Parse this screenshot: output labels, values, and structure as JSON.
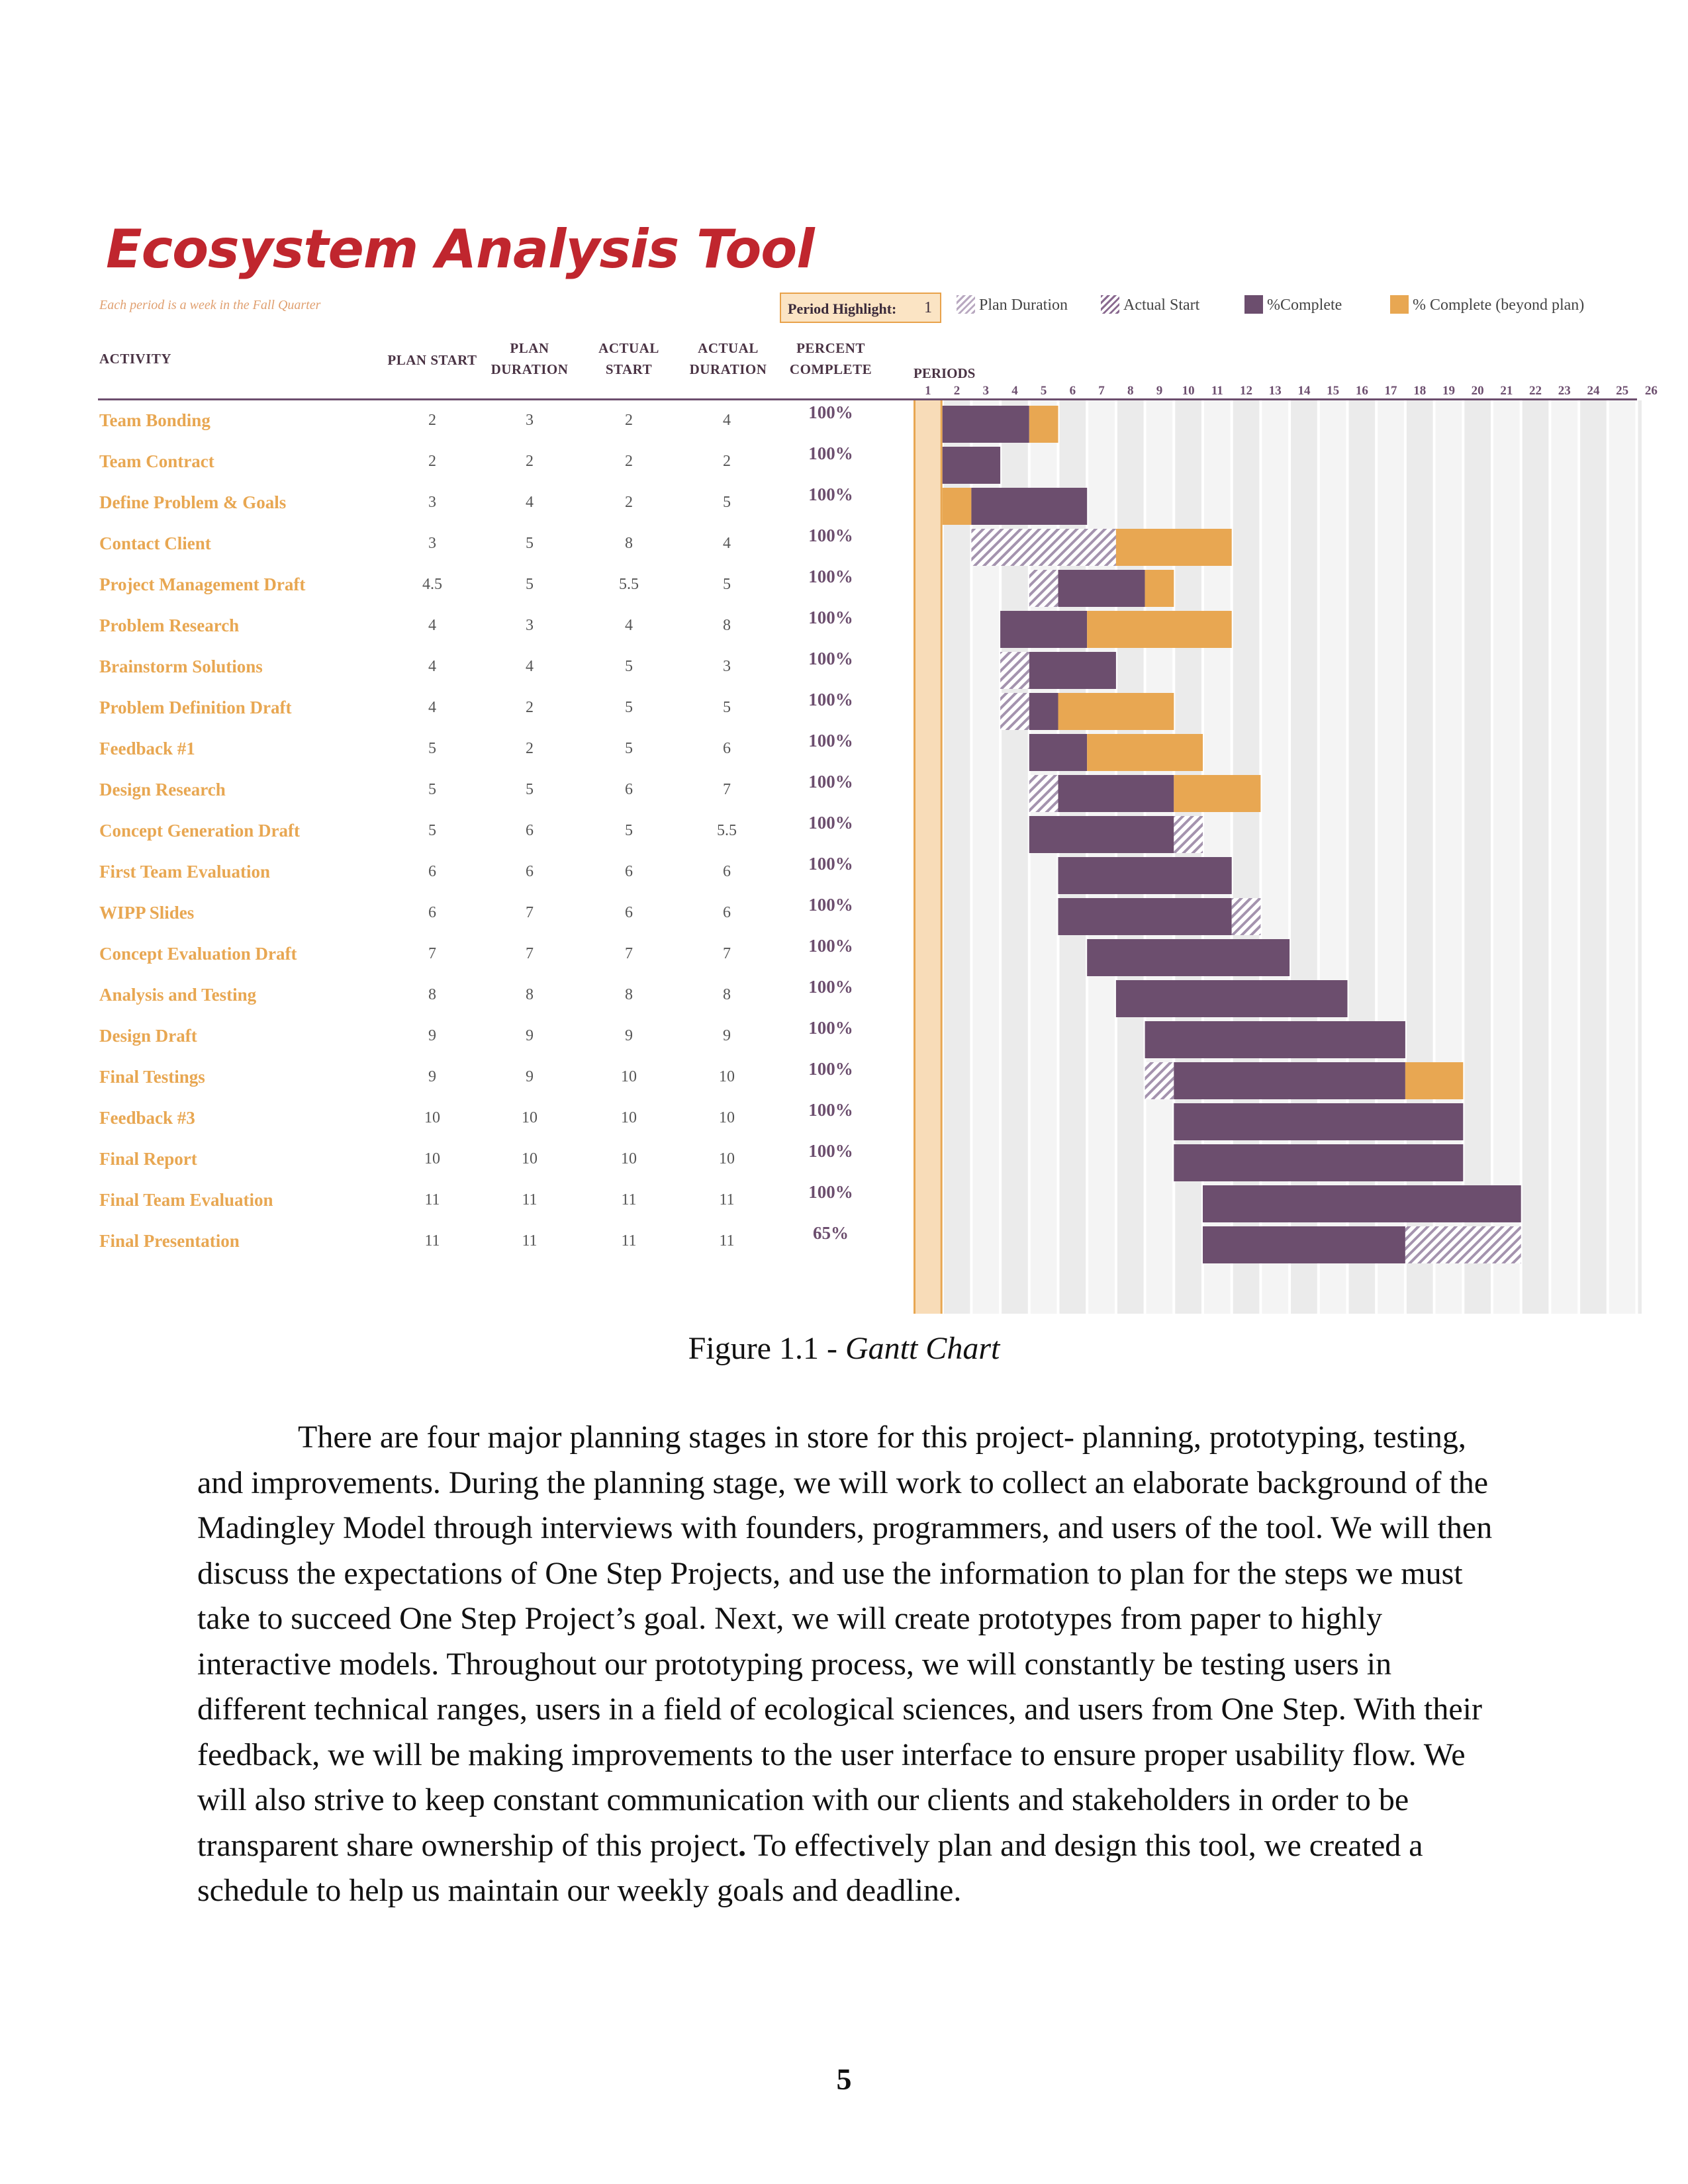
{
  "gantt": {
    "title": "Ecosystem Analysis Tool",
    "subtitle": "Each period is a week in the Fall Quarter",
    "period_highlight_label": "Period Highlight:",
    "period_highlight_value": 1,
    "legend": {
      "plan": "Plan Duration",
      "actual": "Actual Start",
      "complete": "%Complete",
      "beyond": "% Complete (beyond plan)"
    },
    "headers": {
      "activity": "ACTIVITY",
      "plan_start": "PLAN START",
      "plan_duration_1": "PLAN",
      "plan_duration_2": "DURATION",
      "actual_start_1": "ACTUAL",
      "actual_start_2": "START",
      "actual_duration_1": "ACTUAL",
      "actual_duration_2": "DURATION",
      "percent_1": "PERCENT",
      "percent_2": "COMPLETE",
      "periods": "PERIODS"
    },
    "periods": [
      1,
      2,
      3,
      4,
      5,
      6,
      7,
      8,
      9,
      10,
      11,
      12,
      13,
      14,
      15,
      16,
      17,
      18,
      19,
      20,
      21,
      22,
      23,
      24,
      25,
      26
    ],
    "colors": {
      "complete": "#6c4e6e",
      "beyond": "#e8a752",
      "highlight": "#f8dcb8",
      "stripe": "#ececec"
    },
    "rows": [
      {
        "name": "Team Bonding",
        "plan_start": "2",
        "plan_duration": "3",
        "actual_start": "2",
        "actual_duration": "4",
        "percent": "100%"
      },
      {
        "name": "Team Contract",
        "plan_start": "2",
        "plan_duration": "2",
        "actual_start": "2",
        "actual_duration": "2",
        "percent": "100%"
      },
      {
        "name": "Define Problem & Goals",
        "plan_start": "3",
        "plan_duration": "4",
        "actual_start": "2",
        "actual_duration": "5",
        "percent": "100%"
      },
      {
        "name": "Contact Client",
        "plan_start": "3",
        "plan_duration": "5",
        "actual_start": "8",
        "actual_duration": "4",
        "percent": "100%"
      },
      {
        "name": "Project Management Draft",
        "plan_start": "4.5",
        "plan_duration": "5",
        "actual_start": "5.5",
        "actual_duration": "5",
        "percent": "100%"
      },
      {
        "name": "Problem Research",
        "plan_start": "4",
        "plan_duration": "3",
        "actual_start": "4",
        "actual_duration": "8",
        "percent": "100%"
      },
      {
        "name": "Brainstorm Solutions",
        "plan_start": "4",
        "plan_duration": "4",
        "actual_start": "5",
        "actual_duration": "3",
        "percent": "100%"
      },
      {
        "name": "Problem Definition Draft",
        "plan_start": "4",
        "plan_duration": "2",
        "actual_start": "5",
        "actual_duration": "5",
        "percent": "100%"
      },
      {
        "name": "Feedback #1",
        "plan_start": "5",
        "plan_duration": "2",
        "actual_start": "5",
        "actual_duration": "6",
        "percent": "100%"
      },
      {
        "name": "Design Research",
        "plan_start": "5",
        "plan_duration": "5",
        "actual_start": "6",
        "actual_duration": "7",
        "percent": "100%"
      },
      {
        "name": "Concept Generation Draft",
        "plan_start": "5",
        "plan_duration": "6",
        "actual_start": "5",
        "actual_duration": "5.5",
        "percent": "100%"
      },
      {
        "name": "First Team Evaluation",
        "plan_start": "6",
        "plan_duration": "6",
        "actual_start": "6",
        "actual_duration": "6",
        "percent": "100%"
      },
      {
        "name": "WIPP Slides",
        "plan_start": "6",
        "plan_duration": "7",
        "actual_start": "6",
        "actual_duration": "6",
        "percent": "100%"
      },
      {
        "name": "Concept Evaluation Draft",
        "plan_start": "7",
        "plan_duration": "7",
        "actual_start": "7",
        "actual_duration": "7",
        "percent": "100%"
      },
      {
        "name": "Analysis and Testing",
        "plan_start": "8",
        "plan_duration": "8",
        "actual_start": "8",
        "actual_duration": "8",
        "percent": "100%"
      },
      {
        "name": "Design Draft",
        "plan_start": "9",
        "plan_duration": "9",
        "actual_start": "9",
        "actual_duration": "9",
        "percent": "100%"
      },
      {
        "name": "Final Testings",
        "plan_start": "9",
        "plan_duration": "9",
        "actual_start": "10",
        "actual_duration": "10",
        "percent": "100%"
      },
      {
        "name": "Feedback #3",
        "plan_start": "10",
        "plan_duration": "10",
        "actual_start": "10",
        "actual_duration": "10",
        "percent": "100%"
      },
      {
        "name": "Final Report",
        "plan_start": "10",
        "plan_duration": "10",
        "actual_start": "10",
        "actual_duration": "10",
        "percent": "100%"
      },
      {
        "name": "Final Team Evaluation",
        "plan_start": "11",
        "plan_duration": "11",
        "actual_start": "11",
        "actual_duration": "11",
        "percent": "100%"
      },
      {
        "name": "Final Presentation",
        "plan_start": "11",
        "plan_duration": "11",
        "actual_start": "11",
        "actual_duration": "11",
        "percent": "65%"
      }
    ],
    "bars": [
      {
        "start": 2,
        "end": 5,
        "type": "complete"
      },
      {
        "start": 5,
        "end": 6,
        "type": "beyond"
      },
      {
        "start": 2,
        "end": 4,
        "type": "complete"
      },
      {
        "start": 2,
        "end": 3,
        "type": "beyond"
      },
      {
        "start": 3,
        "end": 7,
        "type": "complete"
      },
      {
        "start": 3,
        "end": 8,
        "type": "plan"
      },
      {
        "start": 8,
        "end": 12,
        "type": "beyond"
      },
      {
        "start": 5,
        "end": 6,
        "type": "plan"
      },
      {
        "start": 6,
        "end": 9,
        "type": "complete"
      },
      {
        "start": 9,
        "end": 10,
        "type": "beyond"
      },
      {
        "start": 4,
        "end": 7,
        "type": "complete"
      },
      {
        "start": 7,
        "end": 12,
        "type": "beyond"
      },
      {
        "start": 4,
        "end": 5,
        "type": "plan"
      },
      {
        "start": 5,
        "end": 8,
        "type": "complete"
      },
      {
        "start": 4,
        "end": 5,
        "type": "plan"
      },
      {
        "start": 5,
        "end": 6,
        "type": "complete"
      },
      {
        "start": 6,
        "end": 10,
        "type": "beyond"
      },
      {
        "start": 5,
        "end": 7,
        "type": "complete"
      },
      {
        "start": 7,
        "end": 11,
        "type": "beyond"
      },
      {
        "start": 5,
        "end": 6,
        "type": "plan"
      },
      {
        "start": 6,
        "end": 10,
        "type": "complete"
      },
      {
        "start": 10,
        "end": 13,
        "type": "beyond"
      },
      {
        "start": 5,
        "end": 10,
        "type": "complete"
      },
      {
        "start": 10,
        "end": 11,
        "type": "plan"
      },
      {
        "start": 6,
        "end": 12,
        "type": "complete"
      },
      {
        "start": 6,
        "end": 12,
        "type": "complete"
      },
      {
        "start": 12,
        "end": 13,
        "type": "plan"
      },
      {
        "start": 7,
        "end": 14,
        "type": "complete"
      },
      {
        "start": 8,
        "end": 16,
        "type": "complete"
      },
      {
        "start": 9,
        "end": 18,
        "type": "complete"
      },
      {
        "start": 9,
        "end": 10,
        "type": "plan"
      },
      {
        "start": 10,
        "end": 18,
        "type": "complete"
      },
      {
        "start": 18,
        "end": 20,
        "type": "beyond"
      },
      {
        "start": 10,
        "end": 20,
        "type": "complete"
      },
      {
        "start": 10,
        "end": 20,
        "type": "complete"
      },
      {
        "start": 11,
        "end": 22,
        "type": "complete"
      },
      {
        "start": 11,
        "end": 18,
        "type": "complete"
      },
      {
        "start": 18,
        "end": 22,
        "type": "plan"
      }
    ],
    "bar_rows": [
      0,
      0,
      1,
      2,
      2,
      3,
      3,
      4,
      4,
      4,
      5,
      5,
      6,
      6,
      7,
      7,
      7,
      8,
      8,
      9,
      9,
      9,
      10,
      10,
      11,
      12,
      12,
      13,
      14,
      15,
      16,
      16,
      16,
      17,
      18,
      19,
      20,
      20
    ]
  },
  "caption": {
    "prefix": "Figure 1.1 - ",
    "italic": "Gantt Chart"
  },
  "body": {
    "part1": "There are four major planning stages in store for this project- planning, prototyping, testing, and improvements. During the planning stage, we will work to collect an elaborate background of the Madingley Model through interviews with founders, programmers, and users of the tool. We will then discuss the expectations of One Step Projects, and use the information to plan for the steps we must take to succeed One Step Project’s goal. Next, we will create prototypes from paper to highly interactive models. Throughout our prototyping process, we will constantly be testing users in different technical ranges, users in a field of ecological sciences, and users from One Step. With their feedback, we will be making improvements to the user interface to ensure proper usability flow. We will also strive to keep constant communication with our clients and stakeholders in order to be transparent share ownership of this project",
    "bold_period": ".",
    "part2": " To effectively plan and design this tool, we created a schedule to help us maintain our weekly goals and deadline."
  },
  "page_number": "5"
}
